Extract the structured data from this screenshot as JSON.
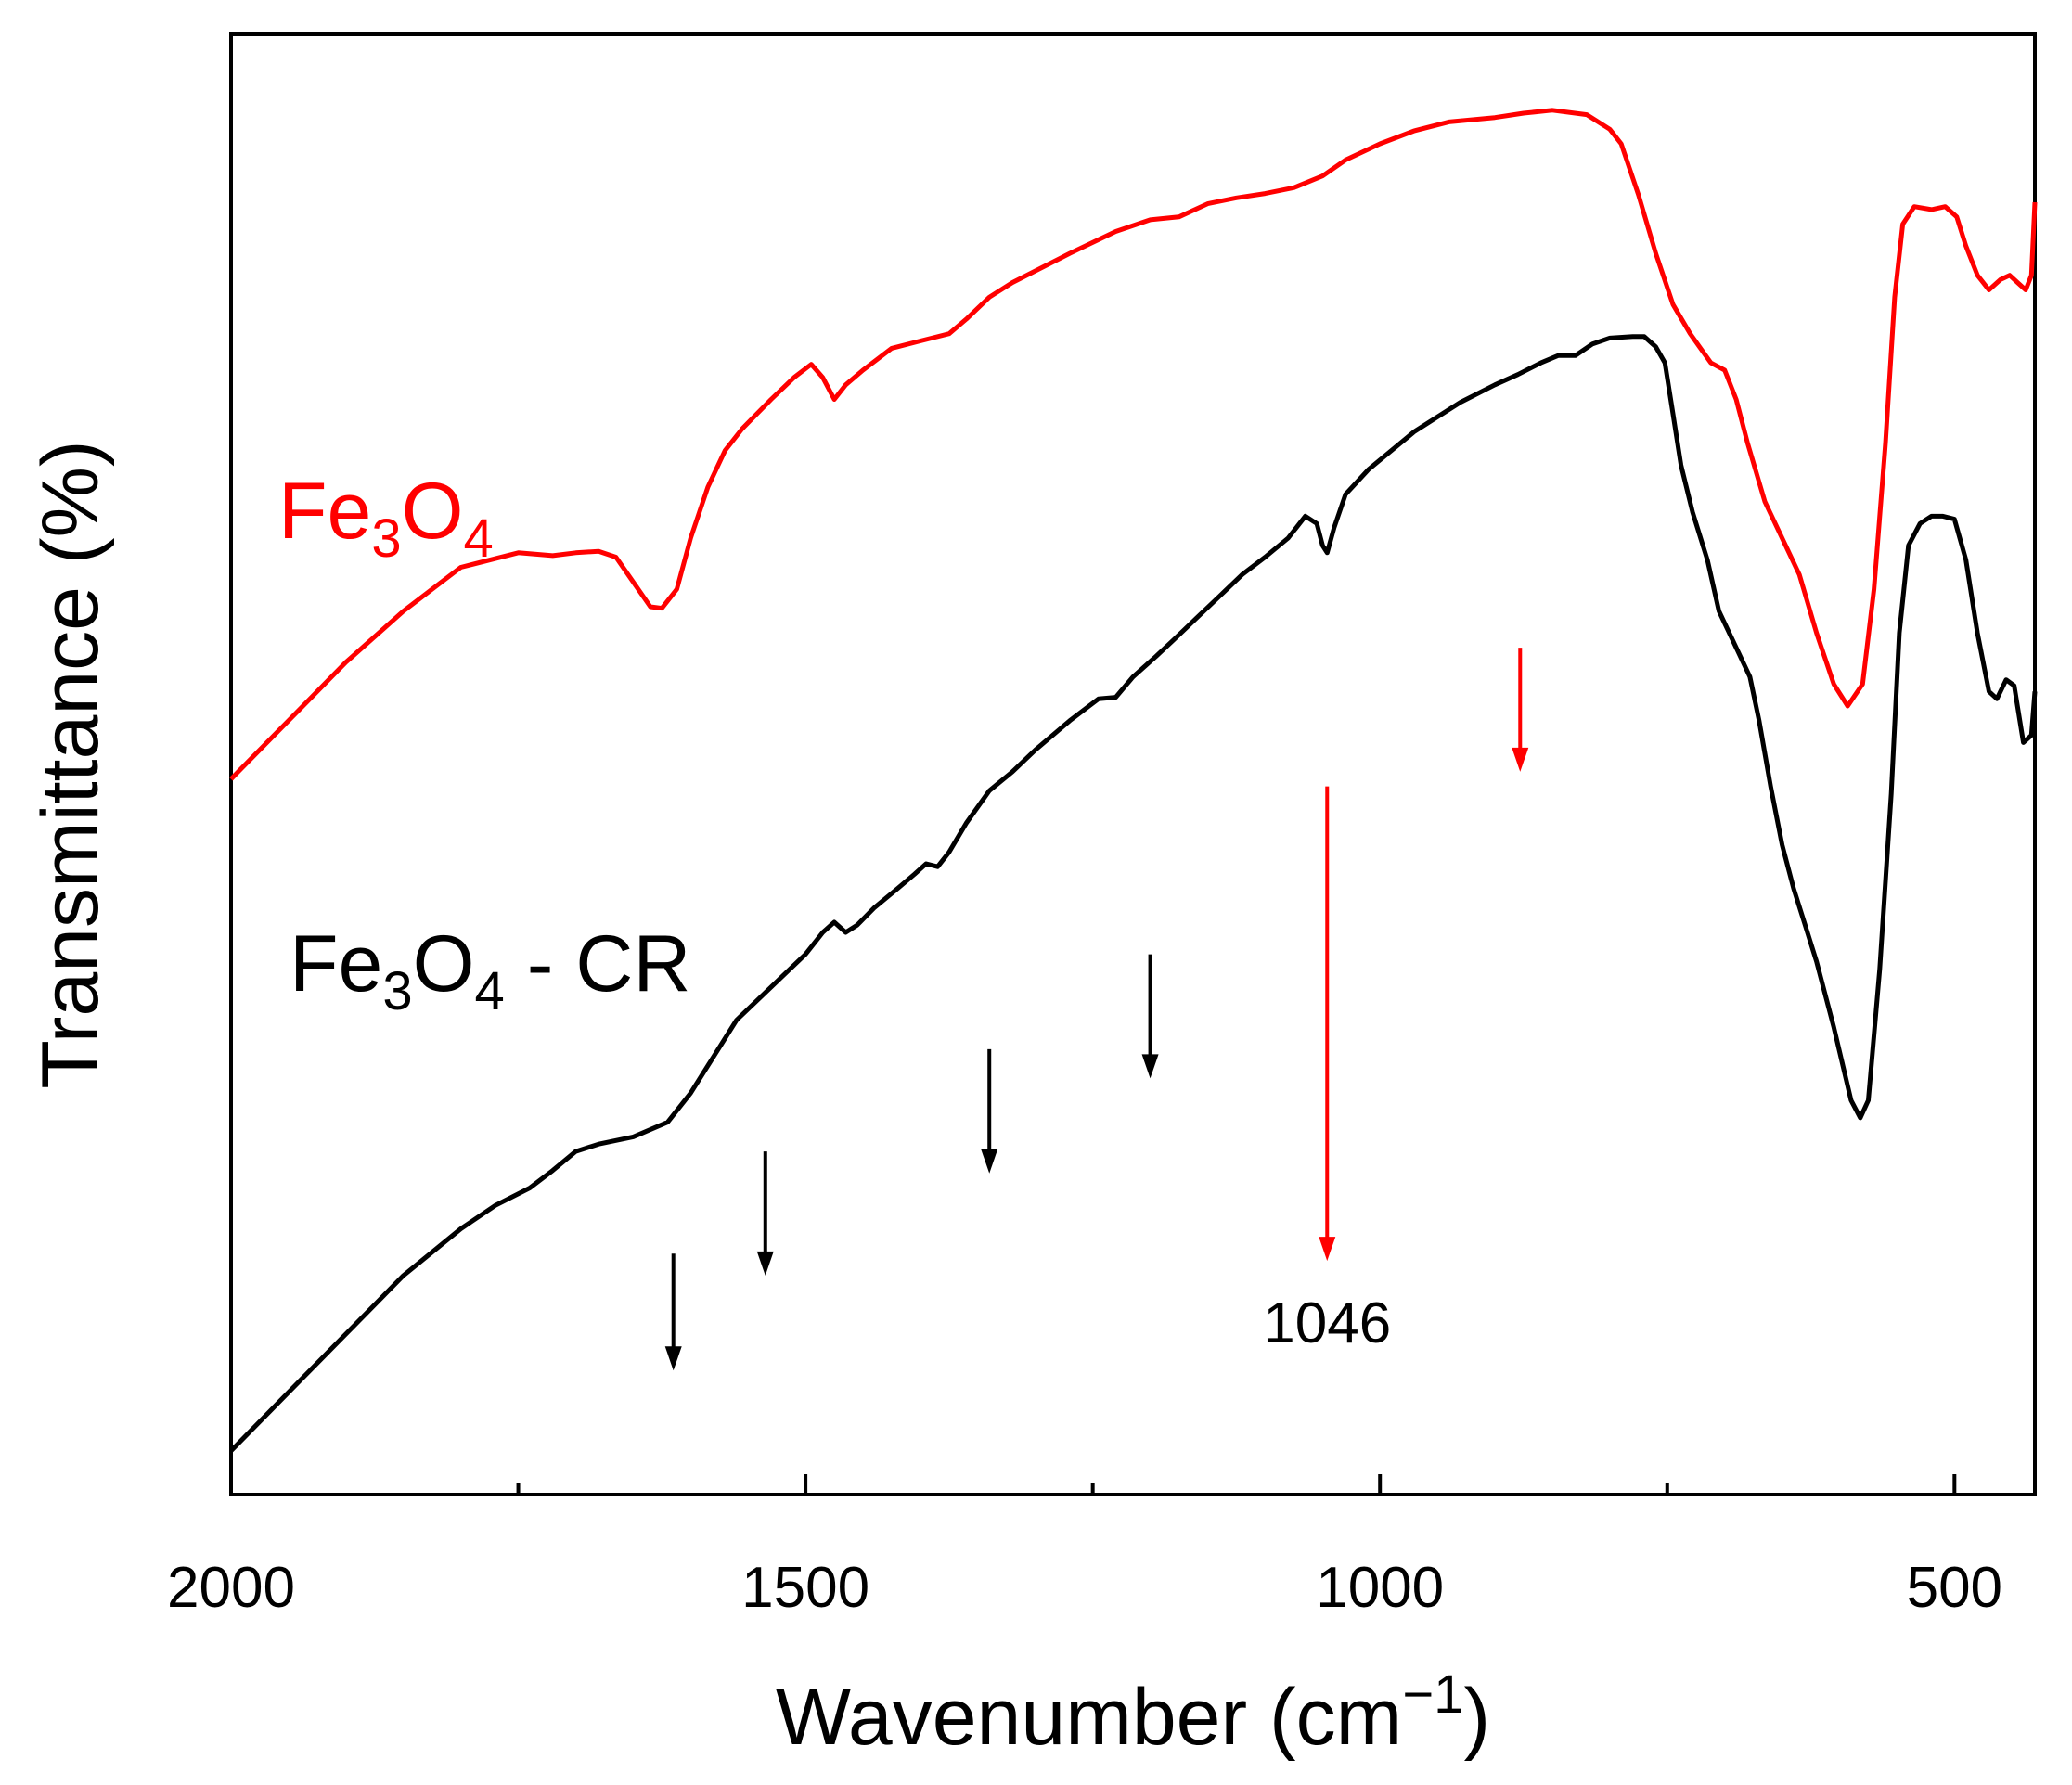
{
  "chart_data": {
    "type": "line",
    "title": "",
    "xlabel": "Wavenumber (cm",
    "xlabel_sup": "−1",
    "xlabel_close": ")",
    "ylabel": "Transmittance (%)",
    "xlim": [
      2000,
      430
    ],
    "ylim": [
      0,
      100
    ],
    "x_reversed": true,
    "y_tick_labels_shown": false,
    "grid": false,
    "x_ticks": [
      2000,
      1500,
      1000,
      500
    ],
    "x_tick_labels": [
      "2000",
      "1500",
      "1000",
      "500"
    ],
    "x_minor_ticks": [
      1750,
      1250,
      750
    ],
    "series": [
      {
        "name": "Fe3O4",
        "color": "#ff0000",
        "label_parts": [
          "Fe",
          "3",
          "O",
          "4"
        ],
        "points": [
          [
            2000,
            49
          ],
          [
            1950,
            53
          ],
          [
            1900,
            57
          ],
          [
            1850,
            60.5
          ],
          [
            1800,
            63.5
          ],
          [
            1750,
            64.5
          ],
          [
            1720,
            64.3
          ],
          [
            1700,
            64.5
          ],
          [
            1680,
            64.6
          ],
          [
            1665,
            64.2
          ],
          [
            1650,
            62.5
          ],
          [
            1635,
            60.8
          ],
          [
            1625,
            60.7
          ],
          [
            1612,
            62
          ],
          [
            1600,
            65.5
          ],
          [
            1585,
            69
          ],
          [
            1570,
            71.5
          ],
          [
            1555,
            73
          ],
          [
            1530,
            75
          ],
          [
            1510,
            76.5
          ],
          [
            1495,
            77.4
          ],
          [
            1485,
            76.5
          ],
          [
            1475,
            75
          ],
          [
            1465,
            76
          ],
          [
            1450,
            77
          ],
          [
            1425,
            78.5
          ],
          [
            1400,
            79
          ],
          [
            1375,
            79.5
          ],
          [
            1360,
            80.5
          ],
          [
            1340,
            82
          ],
          [
            1320,
            83
          ],
          [
            1300,
            83.8
          ],
          [
            1270,
            85
          ],
          [
            1230,
            86.5
          ],
          [
            1200,
            87.3
          ],
          [
            1175,
            87.5
          ],
          [
            1150,
            88.4
          ],
          [
            1125,
            88.8
          ],
          [
            1100,
            89.1
          ],
          [
            1075,
            89.5
          ],
          [
            1050,
            90.3
          ],
          [
            1030,
            91.4
          ],
          [
            1000,
            92.5
          ],
          [
            970,
            93.4
          ],
          [
            940,
            94
          ],
          [
            900,
            94.3
          ],
          [
            875,
            94.6
          ],
          [
            850,
            94.8
          ],
          [
            820,
            94.5
          ],
          [
            800,
            93.5
          ],
          [
            790,
            92.5
          ],
          [
            775,
            89
          ],
          [
            760,
            85
          ],
          [
            745,
            81.5
          ],
          [
            730,
            79.5
          ],
          [
            712,
            77.5
          ],
          [
            700,
            77
          ],
          [
            690,
            75
          ],
          [
            680,
            72
          ],
          [
            665,
            68
          ],
          [
            650,
            65.5
          ],
          [
            635,
            63
          ],
          [
            620,
            59
          ],
          [
            605,
            55.5
          ],
          [
            593,
            54
          ],
          [
            580,
            55.5
          ],
          [
            570,
            62
          ],
          [
            560,
            72
          ],
          [
            552,
            82
          ],
          [
            545,
            87
          ],
          [
            535,
            88.2
          ],
          [
            520,
            88
          ],
          [
            508,
            88.2
          ],
          [
            498,
            87.5
          ],
          [
            490,
            85.5
          ],
          [
            480,
            83.5
          ],
          [
            470,
            82.5
          ],
          [
            460,
            83.2
          ],
          [
            452,
            83.5
          ],
          [
            445,
            83
          ],
          [
            438,
            82.5
          ],
          [
            433,
            83.5
          ],
          [
            430,
            88.5
          ]
        ]
      },
      {
        "name": "Fe3O4 - CR",
        "color": "#000000",
        "label_parts": [
          "Fe",
          "3",
          "O",
          "4",
          " - CR"
        ],
        "points": [
          [
            2000,
            3
          ],
          [
            1950,
            7
          ],
          [
            1900,
            11
          ],
          [
            1850,
            15
          ],
          [
            1800,
            18.2
          ],
          [
            1770,
            19.8
          ],
          [
            1740,
            21
          ],
          [
            1720,
            22.2
          ],
          [
            1700,
            23.5
          ],
          [
            1680,
            24
          ],
          [
            1650,
            24.5
          ],
          [
            1620,
            25.5
          ],
          [
            1600,
            27.5
          ],
          [
            1580,
            30
          ],
          [
            1560,
            32.5
          ],
          [
            1540,
            34
          ],
          [
            1520,
            35.5
          ],
          [
            1500,
            37
          ],
          [
            1485,
            38.5
          ],
          [
            1475,
            39.2
          ],
          [
            1465,
            38.5
          ],
          [
            1455,
            39
          ],
          [
            1440,
            40.2
          ],
          [
            1420,
            41.5
          ],
          [
            1405,
            42.5
          ],
          [
            1395,
            43.2
          ],
          [
            1385,
            43
          ],
          [
            1375,
            44
          ],
          [
            1360,
            46
          ],
          [
            1340,
            48.2
          ],
          [
            1320,
            49.5
          ],
          [
            1300,
            51
          ],
          [
            1270,
            53
          ],
          [
            1245,
            54.5
          ],
          [
            1230,
            54.6
          ],
          [
            1215,
            56
          ],
          [
            1195,
            57.4
          ],
          [
            1180,
            58.5
          ],
          [
            1160,
            60
          ],
          [
            1140,
            61.5
          ],
          [
            1120,
            63
          ],
          [
            1100,
            64.2
          ],
          [
            1080,
            65.5
          ],
          [
            1065,
            67
          ],
          [
            1055,
            66.5
          ],
          [
            1050,
            65
          ],
          [
            1046,
            64.5
          ],
          [
            1040,
            66.2
          ],
          [
            1030,
            68.5
          ],
          [
            1010,
            70.2
          ],
          [
            990,
            71.5
          ],
          [
            970,
            72.8
          ],
          [
            950,
            73.8
          ],
          [
            930,
            74.8
          ],
          [
            900,
            76
          ],
          [
            880,
            76.7
          ],
          [
            860,
            77.5
          ],
          [
            845,
            78
          ],
          [
            830,
            78
          ],
          [
            815,
            78.8
          ],
          [
            800,
            79.2
          ],
          [
            780,
            79.3
          ],
          [
            770,
            79.3
          ],
          [
            760,
            78.6
          ],
          [
            752,
            77.5
          ],
          [
            745,
            74
          ],
          [
            738,
            70.5
          ],
          [
            728,
            67.3
          ],
          [
            715,
            64
          ],
          [
            705,
            60.5
          ],
          [
            690,
            58
          ],
          [
            678,
            56
          ],
          [
            670,
            53
          ],
          [
            660,
            48.5
          ],
          [
            650,
            44.5
          ],
          [
            640,
            41.5
          ],
          [
            630,
            39
          ],
          [
            620,
            36.5
          ],
          [
            605,
            32
          ],
          [
            590,
            27
          ],
          [
            582,
            25.8
          ],
          [
            575,
            27
          ],
          [
            565,
            36
          ],
          [
            555,
            48
          ],
          [
            548,
            59
          ],
          [
            540,
            65
          ],
          [
            530,
            66.5
          ],
          [
            520,
            67
          ],
          [
            510,
            67
          ],
          [
            500,
            66.8
          ],
          [
            490,
            64
          ],
          [
            480,
            59
          ],
          [
            470,
            55
          ],
          [
            463,
            54.5
          ],
          [
            455,
            55.8
          ],
          [
            448,
            55.4
          ],
          [
            440,
            51.5
          ],
          [
            433,
            52
          ],
          [
            430,
            55
          ]
        ]
      }
    ],
    "annotations": [
      {
        "type": "arrow",
        "color": "#000000",
        "x": 1615,
        "y_from": 16.5,
        "y_to": 8.5
      },
      {
        "type": "arrow",
        "color": "#000000",
        "x": 1535,
        "y_from": 23.5,
        "y_to": 15
      },
      {
        "type": "arrow",
        "color": "#000000",
        "x": 1340,
        "y_from": 30.5,
        "y_to": 22
      },
      {
        "type": "arrow",
        "color": "#000000",
        "x": 1200,
        "y_from": 37,
        "y_to": 28.5
      },
      {
        "type": "arrow",
        "color": "#ff0000",
        "x": 1046,
        "y_from": 48.5,
        "y_to": 16,
        "label": "1046"
      },
      {
        "type": "arrow",
        "color": "#ff0000",
        "x": 878,
        "y_from": 58,
        "y_to": 49.5
      }
    ]
  }
}
